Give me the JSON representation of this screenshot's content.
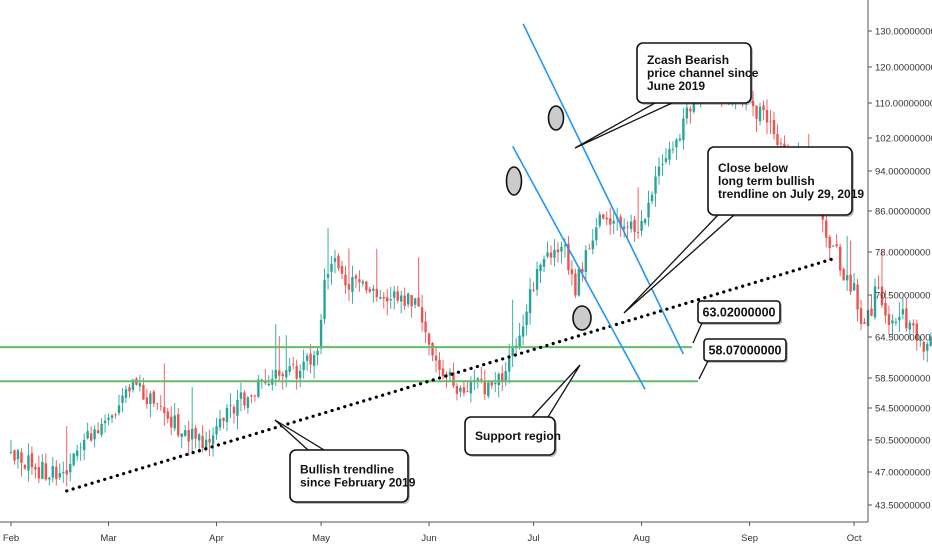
{
  "chart_data": {
    "type": "candlestick",
    "x_ticks": [
      "Feb",
      "Mar",
      "Apr",
      "May",
      "Jun",
      "Jul",
      "Aug",
      "Sep",
      "Oct"
    ],
    "y_ticks": [
      "130.00000000",
      "120.00000000",
      "110.00000000",
      "102.00000000",
      "94.00000000",
      "86.00000000",
      "78.00000000",
      "70.50000000",
      "64.50000000",
      "58.50000000",
      "54.50000000",
      "50.50000000",
      "47.00000000",
      "43.50000000"
    ],
    "levels": [
      {
        "label": "63.02000000",
        "value": 63.02,
        "color": "#66bb6a"
      },
      {
        "label": "58.07000000",
        "value": 58.07,
        "color": "#66bb6a"
      }
    ],
    "trendline": {
      "style": "dotted",
      "color": "#000000",
      "from": [
        "2019-02-17",
        45.0
      ],
      "to": [
        "2019-09-26",
        77.0
      ]
    },
    "channel": {
      "color": "#2196f3",
      "upper": {
        "from": [
          "2019-06-28",
          132.0
        ],
        "to": [
          "2019-08-13",
          62.0
        ]
      },
      "lower": {
        "from": [
          "2019-06-25",
          100.0
        ],
        "to": [
          "2019-08-02",
          57.0
        ]
      }
    },
    "callouts": [
      {
        "name": "channel-callout",
        "lines": [
          "Zcash Bearish",
          "price channel since",
          "June 2019"
        ]
      },
      {
        "name": "close-callout",
        "lines": [
          "Close below",
          "long term bullish",
          "trendline on July 29, 2019"
        ]
      },
      {
        "name": "support-callout",
        "lines": [
          "Support region"
        ]
      },
      {
        "name": "trendline-callout",
        "lines": [
          "Bullish trendline",
          "since February 2019"
        ]
      }
    ],
    "colors": {
      "up": "#26a69a",
      "down": "#ef5350"
    },
    "legend": "none",
    "grid": false
  }
}
